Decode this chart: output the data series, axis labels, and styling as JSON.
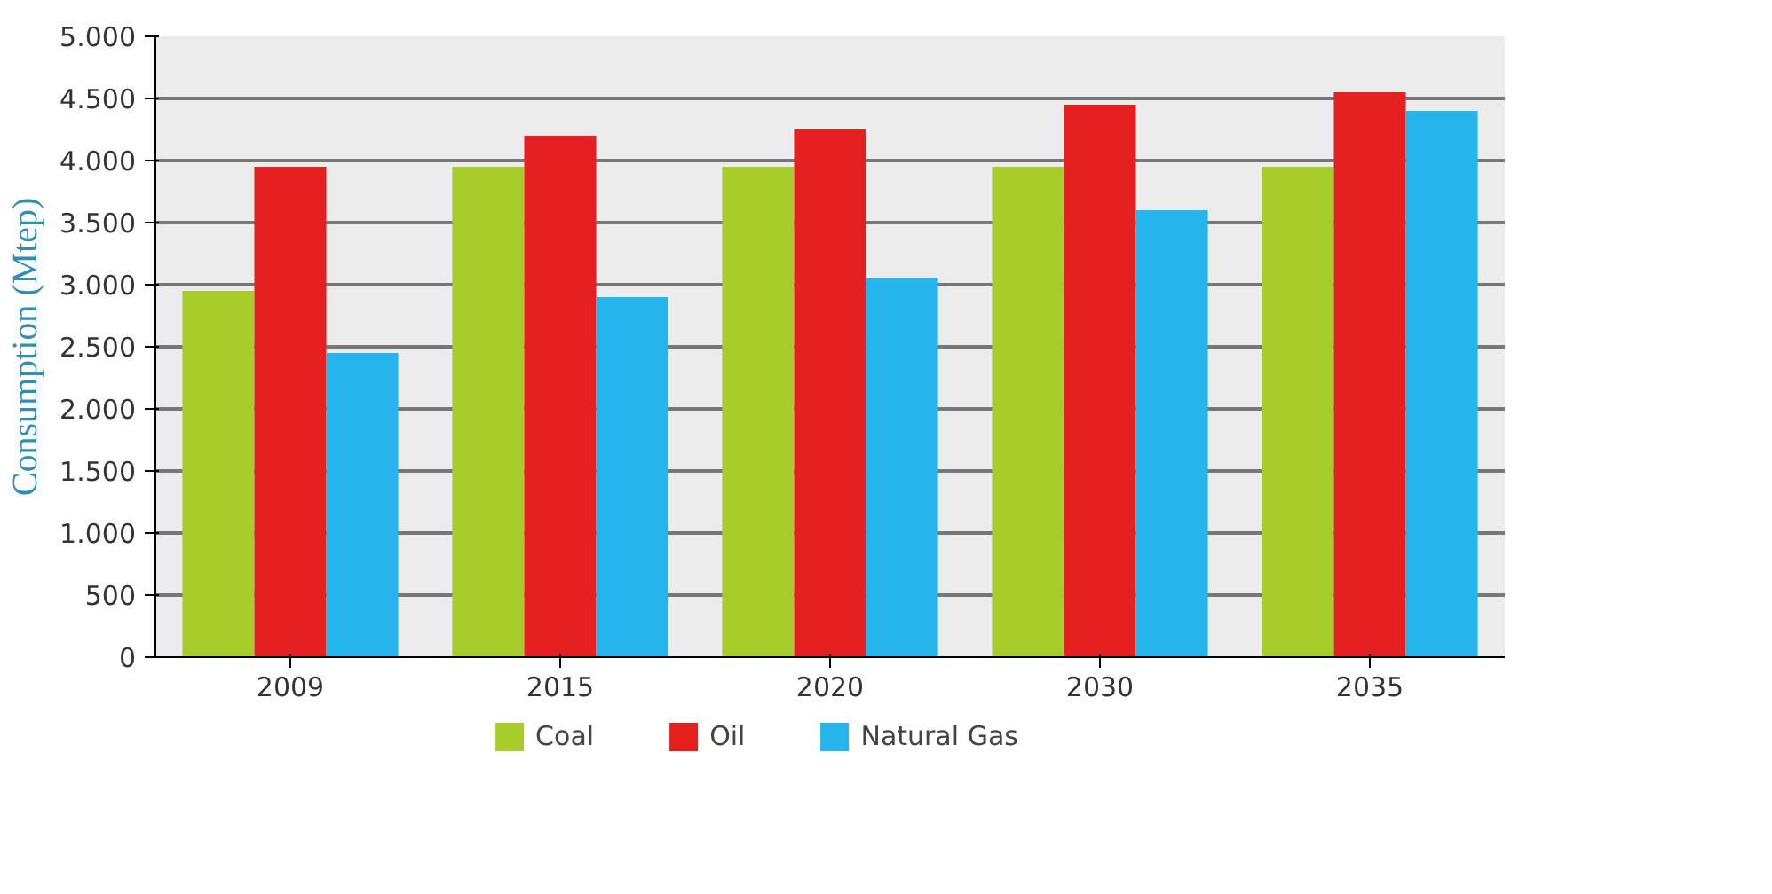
{
  "chart_data": {
    "type": "bar",
    "ylabel": "Consumption (Mtep)",
    "categories": [
      "2009",
      "2015",
      "2020",
      "2030",
      "2035"
    ],
    "series": [
      {
        "name": "Coal",
        "color": "#a8cc2a",
        "values": [
          2950,
          3950,
          3950,
          3950,
          3950
        ]
      },
      {
        "name": "Oil",
        "color": "#e62020",
        "values": [
          3950,
          4200,
          4250,
          4450,
          4550
        ]
      },
      {
        "name": "Natural Gas",
        "color": "#25b5ec",
        "values": [
          2450,
          2900,
          3050,
          3600,
          4400
        ]
      }
    ],
    "ylim": [
      0,
      5000
    ],
    "yticks": [
      0,
      500,
      {
        "value": 1000,
        "label": "1.000"
      },
      {
        "value": 1500,
        "label": "1.500"
      },
      {
        "value": 2000,
        "label": "2.000"
      },
      {
        "value": 2500,
        "label": "2.500"
      },
      {
        "value": 3000,
        "label": "3.000"
      },
      {
        "value": 3500,
        "label": "3.500"
      },
      {
        "value": 4000,
        "label": "4.000"
      },
      {
        "value": 4500,
        "label": "4.500"
      },
      {
        "value": 5000,
        "label": "5.000"
      }
    ],
    "grid": "y",
    "legend": "bottom"
  }
}
